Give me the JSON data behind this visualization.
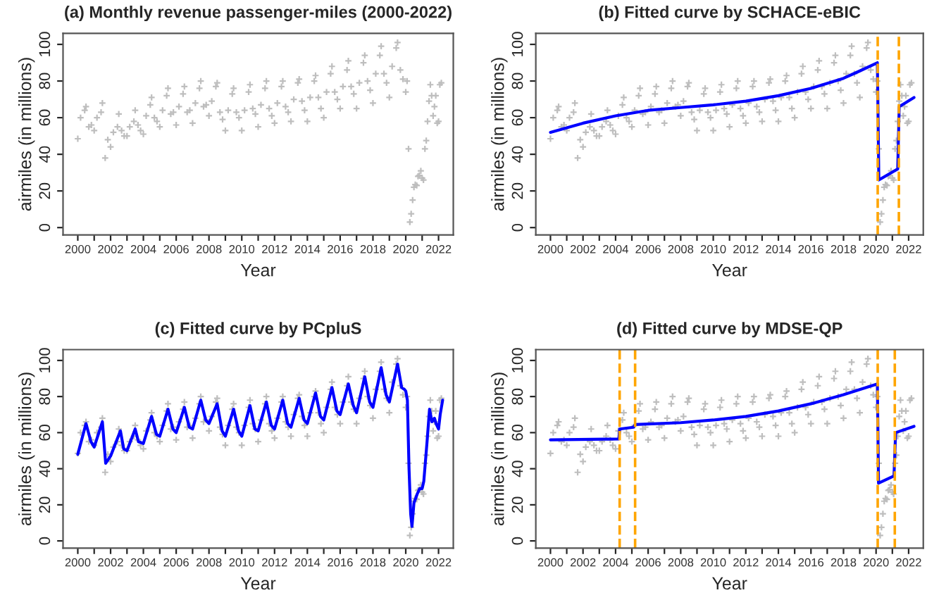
{
  "chart_data": [
    {
      "type": "scatter",
      "title": "(a) Monthly revenue passenger-miles (2000-2022)",
      "xlabel": "Year",
      "ylabel": "airmiles (in millions)",
      "xlim": [
        1999.1,
        2022.9
      ],
      "ylim": [
        -4,
        106
      ],
      "xticks": [
        2000,
        {
          "value": 2001,
          "label": null
        },
        2002,
        {
          "value": 2003,
          "label": null
        },
        2004,
        {
          "value": 2005,
          "label": null
        },
        2006,
        {
          "value": 2007,
          "label": null
        },
        2008,
        {
          "value": 2009,
          "label": null
        },
        2010,
        {
          "value": 2011,
          "label": null
        },
        2012,
        {
          "value": 2013,
          "label": null
        },
        2014,
        {
          "value": 2015,
          "label": null
        },
        2016,
        {
          "value": 2017,
          "label": null
        },
        2018,
        {
          "value": 2019,
          "label": null
        },
        2020,
        {
          "value": 2021,
          "label": null
        },
        2022
      ],
      "yticks": [
        0,
        20,
        40,
        60,
        80,
        100
      ],
      "grid": false,
      "legend": false,
      "series": [
        {
          "marker": "cross",
          "color": "#bebebe",
          "x": [
            2000,
            2000.17,
            2000.42,
            2000.5,
            2000.67,
            2000.83,
            2001,
            2001.17,
            2001.42,
            2001.5,
            2001.67,
            2001.83,
            2002,
            2002.17,
            2002.42,
            2002.5,
            2002.67,
            2002.83,
            2003,
            2003.17,
            2003.42,
            2003.5,
            2003.67,
            2003.83,
            2004,
            2004.17,
            2004.42,
            2004.5,
            2004.67,
            2004.83,
            2005,
            2005.17,
            2005.42,
            2005.5,
            2005.67,
            2005.83,
            2006,
            2006.17,
            2006.42,
            2006.5,
            2006.67,
            2006.83,
            2007,
            2007.17,
            2007.42,
            2007.5,
            2007.67,
            2007.83,
            2008,
            2008.17,
            2008.42,
            2008.5,
            2008.67,
            2008.83,
            2009,
            2009.17,
            2009.42,
            2009.5,
            2009.67,
            2009.83,
            2010,
            2010.17,
            2010.42,
            2010.5,
            2010.67,
            2010.83,
            2011,
            2011.17,
            2011.42,
            2011.5,
            2011.67,
            2011.83,
            2012,
            2012.17,
            2012.42,
            2012.5,
            2012.67,
            2012.83,
            2013,
            2013.17,
            2013.42,
            2013.5,
            2013.67,
            2013.83,
            2014,
            2014.17,
            2014.42,
            2014.5,
            2014.67,
            2014.83,
            2015,
            2015.17,
            2015.42,
            2015.5,
            2015.67,
            2015.83,
            2016,
            2016.17,
            2016.42,
            2016.5,
            2016.67,
            2016.83,
            2017,
            2017.17,
            2017.42,
            2017.5,
            2017.67,
            2017.83,
            2018,
            2018.17,
            2018.42,
            2018.5,
            2018.67,
            2018.83,
            2019,
            2019.17,
            2019.42,
            2019.5,
            2019.67,
            2019.83,
            2020,
            2020.08,
            2020.17,
            2020.25,
            2020.33,
            2020.42,
            2020.5,
            2020.58,
            2020.67,
            2020.75,
            2020.83,
            2020.92,
            2021,
            2021.08,
            2021.17,
            2021.25,
            2021.33,
            2021.42,
            2021.5,
            2021.58,
            2021.67,
            2021.75,
            2021.83,
            2021.92,
            2022,
            2022.08,
            2022.17
          ],
          "values": [
            48.5,
            60,
            64,
            66,
            55,
            56,
            53,
            60,
            63,
            68,
            38,
            48,
            44,
            52,
            55,
            62,
            53,
            50,
            50,
            55,
            58,
            64,
            56,
            53,
            51,
            61,
            67,
            71,
            60,
            58,
            55,
            64,
            72,
            76,
            62,
            63,
            56,
            66,
            73,
            77,
            63,
            64,
            57,
            68,
            76,
            80,
            66,
            67,
            61,
            69,
            77,
            79,
            63,
            59,
            53,
            64,
            73,
            76,
            63,
            60,
            53,
            64,
            74,
            78,
            65,
            62,
            55,
            67,
            76,
            80,
            65,
            61,
            57,
            68,
            77,
            80,
            66,
            63,
            58,
            70,
            79,
            81,
            69,
            64,
            58,
            71,
            80,
            83,
            71,
            65,
            60,
            74,
            84,
            88,
            74,
            70,
            65,
            77,
            86,
            91,
            77,
            73,
            65,
            79,
            90,
            94,
            80,
            75,
            68,
            84,
            94,
            99,
            84,
            79,
            71,
            88,
            98,
            101,
            86,
            81,
            74,
            80,
            43,
            3,
            7.5,
            15,
            22,
            23.5,
            23,
            28,
            28.5,
            31,
            27,
            26,
            43,
            47.5,
            58,
            69,
            78,
            72,
            61,
            66,
            72,
            57,
            58,
            78,
            79
          ]
        }
      ]
    },
    {
      "type": "scatter",
      "title": "(b) Fitted curve by SCHACE-eBIC",
      "xlabel": "Year",
      "ylabel": "airmiles (in millions)",
      "xlim": [
        1999.1,
        2022.9
      ],
      "ylim": [
        -4,
        106
      ],
      "xticks": [
        2000,
        {
          "value": 2001,
          "label": null
        },
        2002,
        {
          "value": 2003,
          "label": null
        },
        2004,
        {
          "value": 2005,
          "label": null
        },
        2006,
        {
          "value": 2007,
          "label": null
        },
        2008,
        {
          "value": 2009,
          "label": null
        },
        2010,
        {
          "value": 2011,
          "label": null
        },
        2012,
        {
          "value": 2013,
          "label": null
        },
        2014,
        {
          "value": 2015,
          "label": null
        },
        2016,
        {
          "value": 2017,
          "label": null
        },
        2018,
        {
          "value": 2019,
          "label": null
        },
        2020,
        {
          "value": 2021,
          "label": null
        },
        2022
      ],
      "yticks": [
        0,
        20,
        40,
        60,
        80,
        100
      ],
      "grid": false,
      "legend": false,
      "ref_lines": [
        {
          "axis": "x",
          "value": 2020.1,
          "color": "#ffa500",
          "line_style": "dashed"
        },
        {
          "axis": "x",
          "value": 2021.4,
          "color": "#ffa500",
          "line_style": "dashed"
        }
      ],
      "series": [
        {
          "marker": "cross",
          "color": "#bebebe",
          "x": [
            2000,
            2000.17,
            2000.42,
            2000.5,
            2000.67,
            2000.83,
            2001,
            2001.17,
            2001.42,
            2001.5,
            2001.67,
            2001.83,
            2002,
            2002.17,
            2002.42,
            2002.5,
            2002.67,
            2002.83,
            2003,
            2003.17,
            2003.42,
            2003.5,
            2003.67,
            2003.83,
            2004,
            2004.17,
            2004.42,
            2004.5,
            2004.67,
            2004.83,
            2005,
            2005.17,
            2005.42,
            2005.5,
            2005.67,
            2005.83,
            2006,
            2006.17,
            2006.42,
            2006.5,
            2006.67,
            2006.83,
            2007,
            2007.17,
            2007.42,
            2007.5,
            2007.67,
            2007.83,
            2008,
            2008.17,
            2008.42,
            2008.5,
            2008.67,
            2008.83,
            2009,
            2009.17,
            2009.42,
            2009.5,
            2009.67,
            2009.83,
            2010,
            2010.17,
            2010.42,
            2010.5,
            2010.67,
            2010.83,
            2011,
            2011.17,
            2011.42,
            2011.5,
            2011.67,
            2011.83,
            2012,
            2012.17,
            2012.42,
            2012.5,
            2012.67,
            2012.83,
            2013,
            2013.17,
            2013.42,
            2013.5,
            2013.67,
            2013.83,
            2014,
            2014.17,
            2014.42,
            2014.5,
            2014.67,
            2014.83,
            2015,
            2015.17,
            2015.42,
            2015.5,
            2015.67,
            2015.83,
            2016,
            2016.17,
            2016.42,
            2016.5,
            2016.67,
            2016.83,
            2017,
            2017.17,
            2017.42,
            2017.5,
            2017.67,
            2017.83,
            2018,
            2018.17,
            2018.42,
            2018.5,
            2018.67,
            2018.83,
            2019,
            2019.17,
            2019.42,
            2019.5,
            2019.67,
            2019.83,
            2020,
            2020.08,
            2020.17,
            2020.25,
            2020.33,
            2020.42,
            2020.5,
            2020.58,
            2020.67,
            2020.75,
            2020.83,
            2020.92,
            2021,
            2021.08,
            2021.17,
            2021.25,
            2021.33,
            2021.42,
            2021.5,
            2021.58,
            2021.67,
            2021.75,
            2021.83,
            2021.92,
            2022,
            2022.08,
            2022.17
          ],
          "values": [
            48.5,
            60,
            64,
            66,
            55,
            56,
            53,
            60,
            63,
            68,
            38,
            48,
            44,
            52,
            55,
            62,
            53,
            50,
            50,
            55,
            58,
            64,
            56,
            53,
            51,
            61,
            67,
            71,
            60,
            58,
            55,
            64,
            72,
            76,
            62,
            63,
            56,
            66,
            73,
            77,
            63,
            64,
            57,
            68,
            76,
            80,
            66,
            67,
            61,
            69,
            77,
            79,
            63,
            59,
            53,
            64,
            73,
            76,
            63,
            60,
            53,
            64,
            74,
            78,
            65,
            62,
            55,
            67,
            76,
            80,
            65,
            61,
            57,
            68,
            77,
            80,
            66,
            63,
            58,
            70,
            79,
            81,
            69,
            64,
            58,
            71,
            80,
            83,
            71,
            65,
            60,
            74,
            84,
            88,
            74,
            70,
            65,
            77,
            86,
            91,
            77,
            73,
            65,
            79,
            90,
            94,
            80,
            75,
            68,
            84,
            94,
            99,
            84,
            79,
            71,
            88,
            98,
            101,
            86,
            81,
            74,
            80,
            43,
            3,
            7.5,
            15,
            22,
            23.5,
            23,
            28,
            28.5,
            31,
            27,
            26,
            43,
            47.5,
            58,
            69,
            78,
            72,
            61,
            66,
            72,
            57,
            58,
            78,
            79
          ]
        },
        {
          "type": "line",
          "color": "#0000ff",
          "x": [
            2000,
            2002,
            2004,
            2006,
            2008,
            2010,
            2012,
            2014,
            2016,
            2018,
            2019,
            2020.08,
            2020.17,
            2021.33,
            2021.42,
            2022.33
          ],
          "values": [
            52,
            57,
            61,
            64,
            65.5,
            67,
            69,
            72,
            76,
            81.5,
            85.5,
            90,
            26,
            32,
            66,
            71
          ]
        }
      ]
    },
    {
      "type": "scatter",
      "title": "(c) Fitted curve by PCpluS",
      "xlabel": "Year",
      "ylabel": "airmiles (in millions)",
      "xlim": [
        1999.1,
        2022.9
      ],
      "ylim": [
        -4,
        106
      ],
      "xticks": [
        2000,
        {
          "value": 2001,
          "label": null
        },
        2002,
        {
          "value": 2003,
          "label": null
        },
        2004,
        {
          "value": 2005,
          "label": null
        },
        2006,
        {
          "value": 2007,
          "label": null
        },
        2008,
        {
          "value": 2009,
          "label": null
        },
        2010,
        {
          "value": 2011,
          "label": null
        },
        2012,
        {
          "value": 2013,
          "label": null
        },
        2014,
        {
          "value": 2015,
          "label": null
        },
        2016,
        {
          "value": 2017,
          "label": null
        },
        2018,
        {
          "value": 2019,
          "label": null
        },
        2020,
        {
          "value": 2021,
          "label": null
        },
        2022
      ],
      "yticks": [
        0,
        20,
        40,
        60,
        80,
        100
      ],
      "grid": false,
      "legend": false,
      "series": [
        {
          "marker": "cross",
          "color": "#bebebe",
          "x": [
            2000,
            2000.17,
            2000.42,
            2000.5,
            2000.67,
            2000.83,
            2001,
            2001.17,
            2001.42,
            2001.5,
            2001.67,
            2001.83,
            2002,
            2002.17,
            2002.42,
            2002.5,
            2002.67,
            2002.83,
            2003,
            2003.17,
            2003.42,
            2003.5,
            2003.67,
            2003.83,
            2004,
            2004.17,
            2004.42,
            2004.5,
            2004.67,
            2004.83,
            2005,
            2005.17,
            2005.42,
            2005.5,
            2005.67,
            2005.83,
            2006,
            2006.17,
            2006.42,
            2006.5,
            2006.67,
            2006.83,
            2007,
            2007.17,
            2007.42,
            2007.5,
            2007.67,
            2007.83,
            2008,
            2008.17,
            2008.42,
            2008.5,
            2008.67,
            2008.83,
            2009,
            2009.17,
            2009.42,
            2009.5,
            2009.67,
            2009.83,
            2010,
            2010.17,
            2010.42,
            2010.5,
            2010.67,
            2010.83,
            2011,
            2011.17,
            2011.42,
            2011.5,
            2011.67,
            2011.83,
            2012,
            2012.17,
            2012.42,
            2012.5,
            2012.67,
            2012.83,
            2013,
            2013.17,
            2013.42,
            2013.5,
            2013.67,
            2013.83,
            2014,
            2014.17,
            2014.42,
            2014.5,
            2014.67,
            2014.83,
            2015,
            2015.17,
            2015.42,
            2015.5,
            2015.67,
            2015.83,
            2016,
            2016.17,
            2016.42,
            2016.5,
            2016.67,
            2016.83,
            2017,
            2017.17,
            2017.42,
            2017.5,
            2017.67,
            2017.83,
            2018,
            2018.17,
            2018.42,
            2018.5,
            2018.67,
            2018.83,
            2019,
            2019.17,
            2019.42,
            2019.5,
            2019.67,
            2019.83,
            2020,
            2020.08,
            2020.17,
            2020.25,
            2020.33,
            2020.42,
            2020.5,
            2020.58,
            2020.67,
            2020.75,
            2020.83,
            2020.92,
            2021,
            2021.08,
            2021.17,
            2021.25,
            2021.33,
            2021.42,
            2021.5,
            2021.58,
            2021.67,
            2021.75,
            2021.83,
            2021.92,
            2022,
            2022.08,
            2022.17
          ],
          "values": [
            48.5,
            60,
            64,
            66,
            55,
            56,
            53,
            60,
            63,
            68,
            38,
            48,
            44,
            52,
            55,
            62,
            53,
            50,
            50,
            55,
            58,
            64,
            56,
            53,
            51,
            61,
            67,
            71,
            60,
            58,
            55,
            64,
            72,
            76,
            62,
            63,
            56,
            66,
            73,
            77,
            63,
            64,
            57,
            68,
            76,
            80,
            66,
            67,
            61,
            69,
            77,
            79,
            63,
            59,
            53,
            64,
            73,
            76,
            63,
            60,
            53,
            64,
            74,
            78,
            65,
            62,
            55,
            67,
            76,
            80,
            65,
            61,
            57,
            68,
            77,
            80,
            66,
            63,
            58,
            70,
            79,
            81,
            69,
            64,
            58,
            71,
            80,
            83,
            71,
            65,
            60,
            74,
            84,
            88,
            74,
            70,
            65,
            77,
            86,
            91,
            77,
            73,
            65,
            79,
            90,
            94,
            80,
            75,
            68,
            84,
            94,
            99,
            84,
            79,
            71,
            88,
            98,
            101,
            86,
            81,
            74,
            80,
            43,
            3,
            7.5,
            15,
            22,
            23.5,
            23,
            28,
            28.5,
            31,
            27,
            26,
            43,
            47.5,
            58,
            69,
            78,
            72,
            61,
            66,
            72,
            57,
            58,
            78,
            79
          ]
        },
        {
          "type": "line",
          "color": "#0000ff",
          "x": [
            2000,
            2000.5,
            2000.8,
            2001,
            2001.5,
            2001.7,
            2002,
            2002.6,
            2002.8,
            2003,
            2003.5,
            2003.7,
            2004,
            2004.5,
            2004.8,
            2005,
            2005.5,
            2005.8,
            2006,
            2006.5,
            2006.8,
            2007,
            2007.5,
            2007.8,
            2008,
            2008.5,
            2008.8,
            2009,
            2009.5,
            2009.8,
            2010,
            2010.5,
            2010.8,
            2011,
            2011.5,
            2011.8,
            2012,
            2012.5,
            2012.8,
            2013,
            2013.5,
            2013.8,
            2014,
            2014.5,
            2014.8,
            2015,
            2015.5,
            2015.8,
            2016,
            2016.5,
            2016.8,
            2017,
            2017.5,
            2017.8,
            2018,
            2018.5,
            2018.8,
            2019,
            2019.5,
            2019.75,
            2019.92,
            2020,
            2020.1,
            2020.2,
            2020.3,
            2020.38,
            2020.5,
            2020.7,
            2020.85,
            2021,
            2021.1,
            2021.3,
            2021.45,
            2021.6,
            2021.75,
            2021.85,
            2022,
            2022.1,
            2022.25
          ],
          "values": [
            48,
            65,
            55,
            52,
            66,
            43,
            47,
            61,
            51,
            50,
            62,
            55,
            54,
            69,
            59,
            58,
            73,
            62,
            60,
            74,
            63,
            62,
            78,
            67,
            65,
            76,
            61,
            58,
            73,
            61,
            58,
            75,
            62,
            61,
            77,
            64,
            62,
            78,
            65,
            63,
            79,
            67,
            65,
            82,
            69,
            67,
            85,
            72,
            70,
            87,
            75,
            71,
            91,
            77,
            74,
            96,
            81,
            77,
            98,
            85,
            84,
            83,
            78,
            40,
            15,
            8,
            21,
            26,
            29,
            29,
            33,
            55,
            73,
            66,
            68,
            65,
            62,
            70,
            78
          ]
        }
      ]
    },
    {
      "type": "scatter",
      "title": "(d) Fitted curve by MDSE-QP",
      "xlabel": "Year",
      "ylabel": "airmiles (in millions)",
      "xlim": [
        1999.1,
        2022.9
      ],
      "ylim": [
        -4,
        106
      ],
      "xticks": [
        2000,
        {
          "value": 2001,
          "label": null
        },
        2002,
        {
          "value": 2003,
          "label": null
        },
        2004,
        {
          "value": 2005,
          "label": null
        },
        2006,
        {
          "value": 2007,
          "label": null
        },
        2008,
        {
          "value": 2009,
          "label": null
        },
        2010,
        {
          "value": 2011,
          "label": null
        },
        2012,
        {
          "value": 2013,
          "label": null
        },
        2014,
        {
          "value": 2015,
          "label": null
        },
        2016,
        {
          "value": 2017,
          "label": null
        },
        2018,
        {
          "value": 2019,
          "label": null
        },
        2020,
        {
          "value": 2021,
          "label": null
        },
        2022
      ],
      "yticks": [
        0,
        20,
        40,
        60,
        80,
        100
      ],
      "grid": false,
      "legend": false,
      "ref_lines": [
        {
          "axis": "x",
          "value": 2004.25,
          "color": "#ffa500",
          "line_style": "dashed"
        },
        {
          "axis": "x",
          "value": 2005.2,
          "color": "#ffa500",
          "line_style": "dashed"
        },
        {
          "axis": "x",
          "value": 2020.1,
          "color": "#ffa500",
          "line_style": "dashed"
        },
        {
          "axis": "x",
          "value": 2021.15,
          "color": "#ffa500",
          "line_style": "dashed"
        }
      ],
      "series": [
        {
          "marker": "cross",
          "color": "#bebebe",
          "x": [
            2000,
            2000.17,
            2000.42,
            2000.5,
            2000.67,
            2000.83,
            2001,
            2001.17,
            2001.42,
            2001.5,
            2001.67,
            2001.83,
            2002,
            2002.17,
            2002.42,
            2002.5,
            2002.67,
            2002.83,
            2003,
            2003.17,
            2003.42,
            2003.5,
            2003.67,
            2003.83,
            2004,
            2004.17,
            2004.42,
            2004.5,
            2004.67,
            2004.83,
            2005,
            2005.17,
            2005.42,
            2005.5,
            2005.67,
            2005.83,
            2006,
            2006.17,
            2006.42,
            2006.5,
            2006.67,
            2006.83,
            2007,
            2007.17,
            2007.42,
            2007.5,
            2007.67,
            2007.83,
            2008,
            2008.17,
            2008.42,
            2008.5,
            2008.67,
            2008.83,
            2009,
            2009.17,
            2009.42,
            2009.5,
            2009.67,
            2009.83,
            2010,
            2010.17,
            2010.42,
            2010.5,
            2010.67,
            2010.83,
            2011,
            2011.17,
            2011.42,
            2011.5,
            2011.67,
            2011.83,
            2012,
            2012.17,
            2012.42,
            2012.5,
            2012.67,
            2012.83,
            2013,
            2013.17,
            2013.42,
            2013.5,
            2013.67,
            2013.83,
            2014,
            2014.17,
            2014.42,
            2014.5,
            2014.67,
            2014.83,
            2015,
            2015.17,
            2015.42,
            2015.5,
            2015.67,
            2015.83,
            2016,
            2016.17,
            2016.42,
            2016.5,
            2016.67,
            2016.83,
            2017,
            2017.17,
            2017.42,
            2017.5,
            2017.67,
            2017.83,
            2018,
            2018.17,
            2018.42,
            2018.5,
            2018.67,
            2018.83,
            2019,
            2019.17,
            2019.42,
            2019.5,
            2019.67,
            2019.83,
            2020,
            2020.08,
            2020.17,
            2020.25,
            2020.33,
            2020.42,
            2020.5,
            2020.58,
            2020.67,
            2020.75,
            2020.83,
            2020.92,
            2021,
            2021.08,
            2021.17,
            2021.25,
            2021.33,
            2021.42,
            2021.5,
            2021.58,
            2021.67,
            2021.75,
            2021.83,
            2021.92,
            2022,
            2022.08,
            2022.17
          ],
          "values": [
            48.5,
            60,
            64,
            66,
            55,
            56,
            53,
            60,
            63,
            68,
            38,
            48,
            44,
            52,
            55,
            62,
            53,
            50,
            50,
            55,
            58,
            64,
            56,
            53,
            51,
            61,
            67,
            71,
            60,
            58,
            55,
            64,
            72,
            76,
            62,
            63,
            56,
            66,
            73,
            77,
            63,
            64,
            57,
            68,
            76,
            80,
            66,
            67,
            61,
            69,
            77,
            79,
            63,
            59,
            53,
            64,
            73,
            76,
            63,
            60,
            53,
            64,
            74,
            78,
            65,
            62,
            55,
            67,
            76,
            80,
            65,
            61,
            57,
            68,
            77,
            80,
            66,
            63,
            58,
            70,
            79,
            81,
            69,
            64,
            58,
            71,
            80,
            83,
            71,
            65,
            60,
            74,
            84,
            88,
            74,
            70,
            65,
            77,
            86,
            91,
            77,
            73,
            65,
            79,
            90,
            94,
            80,
            75,
            68,
            84,
            94,
            99,
            84,
            79,
            71,
            88,
            98,
            101,
            86,
            81,
            74,
            80,
            43,
            3,
            7.5,
            15,
            22,
            23.5,
            23,
            28,
            28.5,
            31,
            27,
            26,
            43,
            47.5,
            58,
            69,
            78,
            72,
            61,
            66,
            72,
            57,
            58,
            78,
            79
          ]
        },
        {
          "type": "line",
          "color": "#0000ff",
          "x": [
            2000,
            2004.2,
            2004.25,
            2005.1,
            2005.2,
            2008,
            2010,
            2012,
            2014,
            2016,
            2018,
            2020.08,
            2020.15,
            2021.1,
            2021.2,
            2022.33
          ],
          "values": [
            56,
            56.5,
            62,
            63,
            64.5,
            65.5,
            67,
            69,
            72,
            76,
            81,
            87,
            32,
            36,
            60,
            63.5
          ]
        }
      ]
    }
  ]
}
